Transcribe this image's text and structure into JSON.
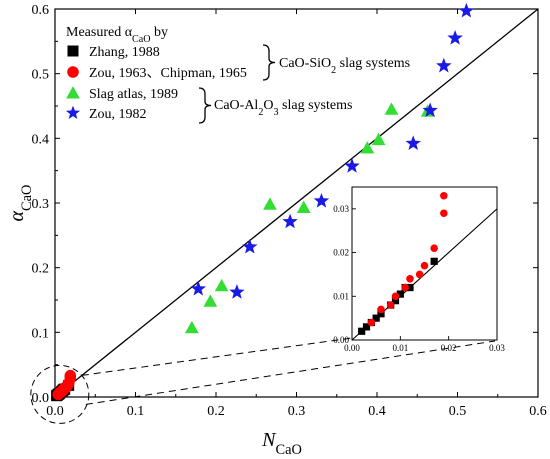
{
  "chart_data": {
    "type": "scatter",
    "xlabel": "N",
    "xlabel_sub": "CaO",
    "ylabel": "α",
    "ylabel_sub": "CaO",
    "xlim": [
      0,
      0.6
    ],
    "ylim": [
      0,
      0.6
    ],
    "x_ticks": [
      0.0,
      0.1,
      0.2,
      0.3,
      0.4,
      0.5,
      0.6
    ],
    "y_ticks": [
      0.0,
      0.1,
      0.2,
      0.3,
      0.4,
      0.5,
      0.6
    ],
    "x_tick_labels": [
      "0.0",
      "0.1",
      "0.2",
      "0.3",
      "0.4",
      "0.5",
      "0.6"
    ],
    "y_tick_labels": [
      "0.0",
      "0.1",
      "0.2",
      "0.3",
      "0.4",
      "0.5",
      "0.6"
    ],
    "reference_line": {
      "x": [
        0,
        0.6
      ],
      "y": [
        0,
        0.6
      ]
    },
    "legend": {
      "title": "Measured α",
      "title_sub": "CaO",
      "title_suffix": " by",
      "placement": "top-left"
    },
    "groups": [
      {
        "label": "CaO-SiO",
        "sub": "2",
        "suffix": " slag systems",
        "series": [
          0,
          1
        ]
      },
      {
        "label": "CaO-Al",
        "sub": "2",
        "mid": "O",
        "sub2": "3",
        "suffix": " slag systems",
        "series": [
          2,
          3
        ]
      }
    ],
    "series": [
      {
        "name": "Zhang, 1988",
        "marker": "square",
        "color": "#000000",
        "x": [
          0.002,
          0.003,
          0.004,
          0.005,
          0.006,
          0.008,
          0.009,
          0.01,
          0.011,
          0.012,
          0.017
        ],
        "y": [
          0.002,
          0.003,
          0.004,
          0.005,
          0.006,
          0.008,
          0.009,
          0.0105,
          0.012,
          0.012,
          0.018
        ]
      },
      {
        "name": "Zou, 1963、Chipman, 1965",
        "marker": "circle",
        "color": "#ff0000",
        "x": [
          0.004,
          0.006,
          0.008,
          0.009,
          0.011,
          0.012,
          0.014,
          0.015,
          0.017,
          0.019,
          0.019
        ],
        "y": [
          0.004,
          0.007,
          0.008,
          0.01,
          0.012,
          0.014,
          0.015,
          0.017,
          0.021,
          0.029,
          0.033
        ]
      },
      {
        "name": "Slag atlas, 1989",
        "marker": "triangle",
        "color": "#33dd33",
        "x": [
          0.17,
          0.193,
          0.207,
          0.267,
          0.309,
          0.388,
          0.402,
          0.418,
          0.463
        ],
        "y": [
          0.107,
          0.148,
          0.172,
          0.298,
          0.293,
          0.385,
          0.398,
          0.445,
          0.442
        ]
      },
      {
        "name": "Zou, 1982",
        "marker": "star",
        "color": "#1a1ae6",
        "x": [
          0.178,
          0.226,
          0.242,
          0.292,
          0.331,
          0.369,
          0.445,
          0.466,
          0.483,
          0.497,
          0.511
        ],
        "y": [
          0.167,
          0.162,
          0.232,
          0.271,
          0.303,
          0.357,
          0.392,
          0.443,
          0.512,
          0.555,
          0.597
        ]
      }
    ],
    "inset": {
      "xlim": [
        0,
        0.03
      ],
      "ylim": [
        0,
        0.035
      ],
      "x_ticks": [
        0.0,
        0.01,
        0.02,
        0.03
      ],
      "y_ticks": [
        0.0,
        0.01,
        0.02,
        0.03
      ],
      "x_tick_labels": [
        "0.00",
        "0.01",
        "0.02",
        "0.03"
      ],
      "y_tick_labels": [
        "0.00",
        "0.01",
        "0.02",
        "0.03"
      ],
      "placement": "bottom-right",
      "magnified_region": "circle around origin",
      "series_shown": [
        0,
        1
      ]
    }
  }
}
